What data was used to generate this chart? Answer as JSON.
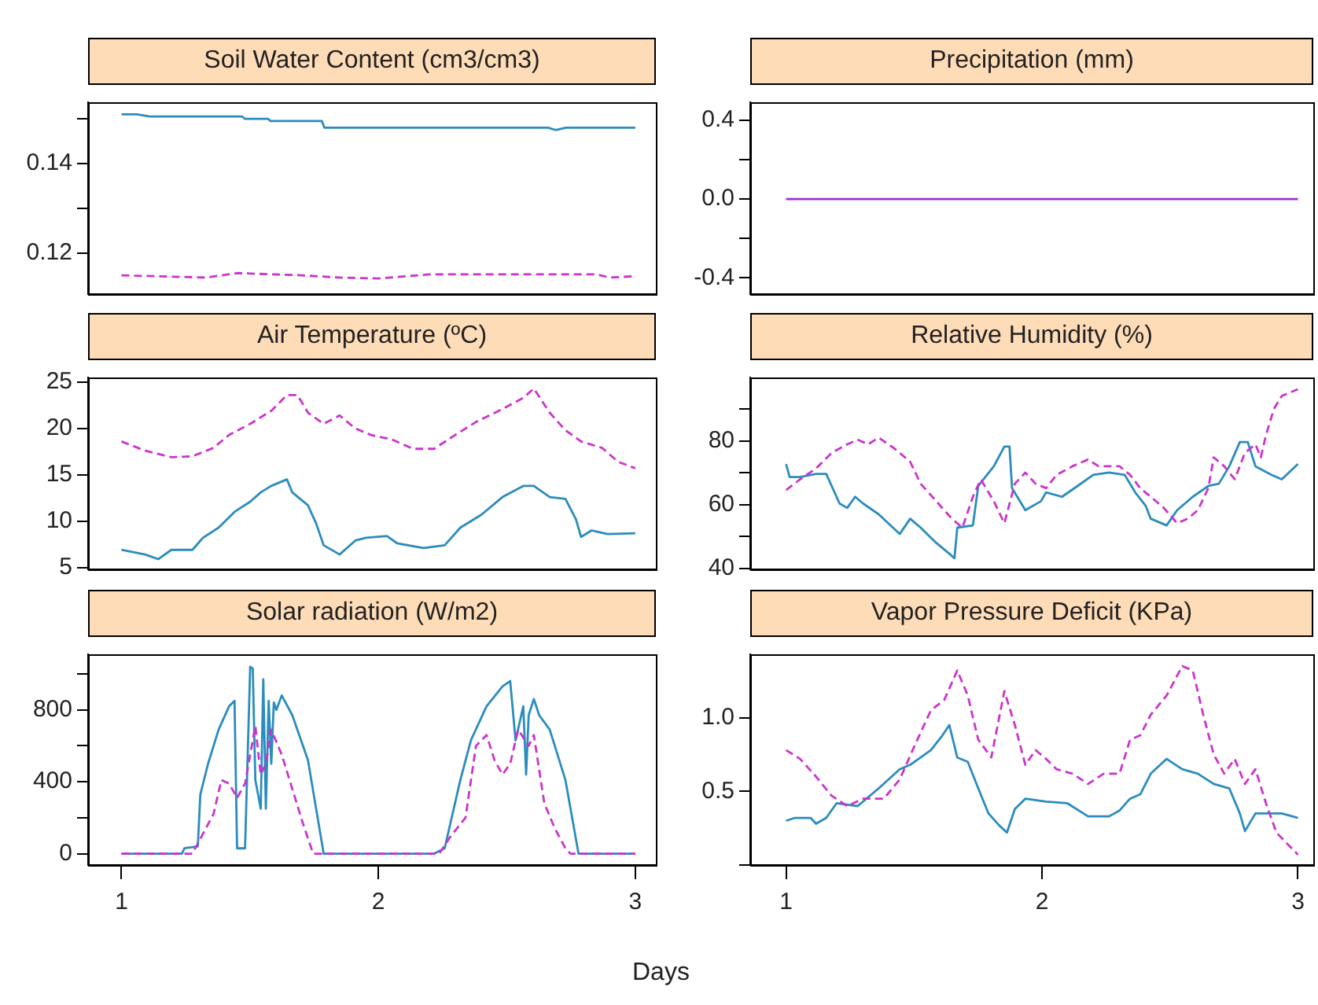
{
  "chart_data": [
    {
      "type": "line",
      "title": "Soil Water Content (cm3/cm3)",
      "xlim": [
        0.87,
        3.08
      ],
      "xticks": [
        1,
        2,
        3
      ],
      "ylim": [
        0.1108,
        0.1537
      ],
      "yticks": [
        {
          "value": 0.12,
          "label": "0.12"
        },
        {
          "value": 0.13,
          "label": null
        },
        {
          "value": 0.14,
          "label": "0.14"
        },
        {
          "value": 0.15,
          "label": null
        }
      ],
      "tick_labels": "y",
      "series": [
        {
          "color": "#2b8cbe",
          "line_style": "solid",
          "x": [
            1,
            1.06,
            1.11,
            1.47,
            1.48,
            1.57,
            1.58,
            1.78,
            1.79,
            2.66,
            2.69,
            2.73,
            3
          ],
          "values": [
            0.151,
            0.151,
            0.1505,
            0.1505,
            0.15,
            0.15,
            0.1495,
            0.1495,
            0.148,
            0.148,
            0.1475,
            0.148,
            0.148
          ]
        },
        {
          "color": "#cc33cc",
          "line_style": "dashed",
          "x": [
            1,
            1.33,
            1.45,
            1.7,
            1.85,
            2.0,
            2.2,
            2.5,
            2.85,
            2.9,
            3
          ],
          "values": [
            0.115,
            0.1145,
            0.1155,
            0.115,
            0.1145,
            0.1143,
            0.1152,
            0.1152,
            0.1152,
            0.1145,
            0.1148
          ]
        }
      ]
    },
    {
      "type": "line",
      "title": "Precipitation (mm)",
      "xlim": [
        0.86,
        3.06
      ],
      "xticks": [
        1,
        2,
        3
      ],
      "ylim": [
        -0.483,
        0.492
      ],
      "yticks": [
        -0.4,
        {
          "value": -0.2,
          "label": null
        },
        {
          "value": 0,
          "label": "0.0"
        },
        {
          "value": 0.2,
          "label": null
        },
        0.4
      ],
      "tick_labels": "y",
      "series": [
        {
          "color": "#9933cc",
          "line_style": "solid",
          "x": [
            1,
            3
          ],
          "values": [
            0,
            0
          ]
        }
      ]
    },
    {
      "type": "line",
      "title": "Air Temperature (ºC)",
      "xlim": [
        0.87,
        3.08
      ],
      "xticks": [
        1,
        2,
        3
      ],
      "ylim": [
        4.8,
        25.5
      ],
      "yticks": [
        5,
        10,
        15,
        20,
        25
      ],
      "tick_labels": "y",
      "series": [
        {
          "color": "#2b8cbe",
          "line_style": "solid",
          "x": [
            1,
            1.092,
            1.143,
            1.194,
            1.276,
            1.317,
            1.378,
            1.44,
            1.501,
            1.542,
            1.583,
            1.644,
            1.665,
            1.726,
            1.757,
            1.787,
            1.849,
            1.91,
            1.951,
            2.033,
            2.074,
            2.176,
            2.258,
            2.319,
            2.401,
            2.483,
            2.564,
            2.605,
            2.667,
            2.728,
            2.769,
            2.789,
            2.83,
            2.892,
            3
          ],
          "values": [
            6.9,
            6.4,
            5.9,
            6.9,
            6.9,
            8.2,
            9.3,
            11.0,
            12.1,
            13.1,
            13.8,
            14.5,
            13.1,
            11.7,
            9.8,
            7.4,
            6.4,
            7.9,
            8.2,
            8.4,
            7.6,
            7.1,
            7.4,
            9.3,
            10.7,
            12.6,
            13.8,
            13.8,
            12.6,
            12.4,
            10.2,
            8.3,
            9.0,
            8.6,
            8.7
          ]
        },
        {
          "color": "#cc33cc",
          "line_style": "dashed",
          "x": [
            1,
            1.092,
            1.194,
            1.276,
            1.358,
            1.419,
            1.501,
            1.583,
            1.644,
            1.685,
            1.726,
            1.787,
            1.849,
            1.91,
            1.971,
            2.053,
            2.135,
            2.217,
            2.299,
            2.38,
            2.483,
            2.564,
            2.605,
            2.667,
            2.728,
            2.789,
            2.871,
            2.933,
            3
          ],
          "values": [
            18.6,
            17.6,
            16.9,
            17.0,
            17.9,
            19.3,
            20.5,
            21.9,
            23.6,
            23.6,
            21.7,
            20.5,
            21.4,
            20.0,
            19.3,
            18.8,
            17.8,
            17.8,
            19.3,
            20.7,
            22.1,
            23.3,
            24.3,
            21.7,
            19.8,
            18.6,
            17.9,
            16.4,
            15.7
          ]
        }
      ]
    },
    {
      "type": "line",
      "title": "Relative Humidity (%)",
      "xlim": [
        0.86,
        3.06
      ],
      "xticks": [
        1,
        2,
        3
      ],
      "ylim": [
        39.7,
        100
      ],
      "yticks": [
        40,
        {
          "value": 50,
          "label": null
        },
        60,
        {
          "value": 70,
          "label": null
        },
        80,
        {
          "value": 90,
          "label": null
        }
      ],
      "tick_labels": "y",
      "series": [
        {
          "color": "#2b8cbe",
          "line_style": "solid",
          "x": [
            1,
            1.014,
            1.055,
            1.117,
            1.157,
            1.209,
            1.239,
            1.27,
            1.301,
            1.362,
            1.444,
            1.485,
            1.526,
            1.587,
            1.638,
            1.658,
            1.669,
            1.73,
            1.751,
            1.812,
            1.853,
            1.873,
            1.883,
            1.935,
            1.996,
            2.016,
            2.078,
            2.139,
            2.2,
            2.262,
            2.323,
            2.364,
            2.405,
            2.425,
            2.487,
            2.528,
            2.589,
            2.65,
            2.691,
            2.732,
            2.773,
            2.804,
            2.834,
            2.896,
            2.937,
            3
          ],
          "values": [
            72.8,
            68.7,
            68.7,
            69.7,
            69.7,
            60.4,
            59.0,
            62.5,
            60.4,
            57.0,
            50.8,
            55.6,
            52.8,
            48.0,
            44.6,
            43.2,
            52.8,
            53.5,
            65.9,
            72.1,
            78.3,
            78.3,
            65.2,
            58.3,
            61.1,
            63.9,
            62.5,
            65.9,
            69.4,
            70.1,
            69.4,
            63.9,
            59.7,
            55.6,
            53.5,
            58.3,
            62.5,
            65.9,
            66.6,
            72.1,
            79.7,
            79.7,
            72.1,
            69.4,
            68.0,
            72.8
          ]
        },
        {
          "color": "#cc33cc",
          "line_style": "dashed",
          "x": [
            1,
            1.055,
            1.117,
            1.178,
            1.239,
            1.28,
            1.321,
            1.362,
            1.423,
            1.485,
            1.526,
            1.587,
            1.648,
            1.689,
            1.73,
            1.761,
            1.791,
            1.812,
            1.853,
            1.894,
            1.935,
            1.975,
            2.016,
            2.057,
            2.119,
            2.18,
            2.221,
            2.262,
            2.303,
            2.344,
            2.384,
            2.425,
            2.476,
            2.528,
            2.569,
            2.609,
            2.65,
            2.671,
            2.712,
            2.753,
            2.793,
            2.834,
            2.855,
            2.875,
            2.906,
            2.937,
            3
          ],
          "values": [
            64.6,
            68.0,
            71.4,
            76.3,
            79.0,
            80.4,
            79.0,
            81.1,
            77.7,
            73.5,
            66.6,
            61.1,
            55.6,
            52.8,
            62.5,
            68.0,
            63.9,
            61.1,
            54.2,
            66.6,
            70.1,
            66.6,
            65.2,
            69.4,
            72.1,
            74.2,
            72.1,
            72.1,
            72.1,
            69.4,
            65.2,
            62.5,
            59.0,
            54.2,
            55.6,
            58.3,
            65.2,
            74.9,
            72.1,
            68.0,
            76.3,
            79.0,
            74.9,
            81.8,
            90.1,
            94.2,
            96.3
          ]
        }
      ]
    },
    {
      "type": "line",
      "title": "Solar radiation (W/m2)",
      "xlabel": "Days",
      "xlim": [
        0.87,
        3.08
      ],
      "xticks": [
        1,
        2,
        3
      ],
      "ylim": [
        -63,
        1109
      ],
      "yticks": [
        0,
        {
          "value": 200,
          "label": null
        },
        400,
        {
          "value": 600,
          "label": null
        },
        800,
        {
          "value": 1000,
          "label": null
        }
      ],
      "series": [
        {
          "color": "#2b8cbe",
          "line_style": "solid",
          "x": [
            1,
            1.235,
            1.245,
            1.297,
            1.307,
            1.337,
            1.378,
            1.419,
            1.44,
            1.45,
            1.481,
            1.501,
            1.511,
            1.521,
            1.542,
            1.552,
            1.562,
            1.573,
            1.583,
            1.593,
            1.603,
            1.624,
            1.665,
            1.726,
            1.787,
            2.217,
            2.258,
            2.319,
            2.36,
            2.421,
            2.483,
            2.513,
            2.534,
            2.564,
            2.575,
            2.585,
            2.605,
            2.626,
            2.667,
            2.728,
            2.779,
            3
          ],
          "values": [
            0,
            0,
            30,
            40,
            330,
            500,
            690,
            820,
            850,
            30,
            30,
            1040,
            1030,
            410,
            250,
            970,
            250,
            850,
            500,
            840,
            800,
            880,
            770,
            520,
            0,
            0,
            30,
            410,
            630,
            820,
            930,
            960,
            630,
            820,
            440,
            770,
            860,
            770,
            690,
            410,
            0,
            0
          ]
        },
        {
          "color": "#cc33cc",
          "line_style": "dashed",
          "x": [
            1,
            1.276,
            1.317,
            1.358,
            1.389,
            1.419,
            1.45,
            1.481,
            1.521,
            1.542,
            1.562,
            1.583,
            1.624,
            1.665,
            1.706,
            1.746,
            2.237,
            2.278,
            2.339,
            2.38,
            2.421,
            2.452,
            2.483,
            2.513,
            2.544,
            2.585,
            2.605,
            2.646,
            2.687,
            2.728,
            2.748,
            3
          ],
          "values": [
            0,
            0,
            110,
            220,
            410,
            390,
            310,
            390,
            710,
            440,
            500,
            690,
            550,
            360,
            170,
            0,
            0,
            90,
            200,
            600,
            660,
            520,
            440,
            500,
            690,
            600,
            660,
            280,
            140,
            30,
            0,
            0
          ]
        }
      ]
    },
    {
      "type": "line",
      "title": "Vapor Pressure Deficit (KPa)",
      "xlim": [
        0.86,
        3.06
      ],
      "xticks": [
        1,
        2,
        3
      ],
      "ylim": [
        0,
        1.43
      ],
      "yticks": [
        {
          "value": 0,
          "label": null
        },
        0.5,
        {
          "value": 1,
          "label": "1.0"
        }
      ],
      "series": [
        {
          "color": "#2b8cbe",
          "line_style": "solid",
          "x": [
            1,
            1.035,
            1.096,
            1.117,
            1.157,
            1.198,
            1.28,
            1.362,
            1.444,
            1.485,
            1.526,
            1.566,
            1.607,
            1.638,
            1.669,
            1.71,
            1.751,
            1.791,
            1.832,
            1.863,
            1.894,
            1.935,
            2.016,
            2.098,
            2.18,
            2.262,
            2.303,
            2.344,
            2.384,
            2.425,
            2.487,
            2.548,
            2.609,
            2.671,
            2.732,
            2.773,
            2.793,
            2.834,
            2.875,
            2.937,
            3
          ],
          "values": [
            0.3,
            0.32,
            0.32,
            0.28,
            0.32,
            0.42,
            0.4,
            0.52,
            0.65,
            0.68,
            0.73,
            0.78,
            0.87,
            0.95,
            0.73,
            0.7,
            0.52,
            0.35,
            0.27,
            0.22,
            0.38,
            0.45,
            0.43,
            0.42,
            0.33,
            0.33,
            0.37,
            0.45,
            0.48,
            0.62,
            0.72,
            0.65,
            0.62,
            0.55,
            0.52,
            0.35,
            0.23,
            0.35,
            0.35,
            0.35,
            0.32
          ]
        },
        {
          "color": "#cc33cc",
          "line_style": "dashed",
          "x": [
            1,
            1.055,
            1.117,
            1.178,
            1.239,
            1.301,
            1.382,
            1.444,
            1.505,
            1.566,
            1.618,
            1.669,
            1.71,
            1.751,
            1.802,
            1.853,
            1.894,
            1.935,
            1.975,
            2.016,
            2.057,
            2.119,
            2.18,
            2.241,
            2.303,
            2.344,
            2.384,
            2.425,
            2.487,
            2.548,
            2.589,
            2.63,
            2.671,
            2.712,
            2.753,
            2.793,
            2.834,
            2.875,
            2.916,
            3
          ],
          "values": [
            0.78,
            0.72,
            0.6,
            0.47,
            0.4,
            0.45,
            0.45,
            0.58,
            0.82,
            1.05,
            1.12,
            1.32,
            1.15,
            0.85,
            0.73,
            1.18,
            0.95,
            0.68,
            0.78,
            0.72,
            0.65,
            0.62,
            0.55,
            0.62,
            0.62,
            0.85,
            0.88,
            1.02,
            1.15,
            1.35,
            1.32,
            1.02,
            0.75,
            0.62,
            0.72,
            0.55,
            0.65,
            0.42,
            0.22,
            0.07
          ]
        }
      ]
    }
  ]
}
